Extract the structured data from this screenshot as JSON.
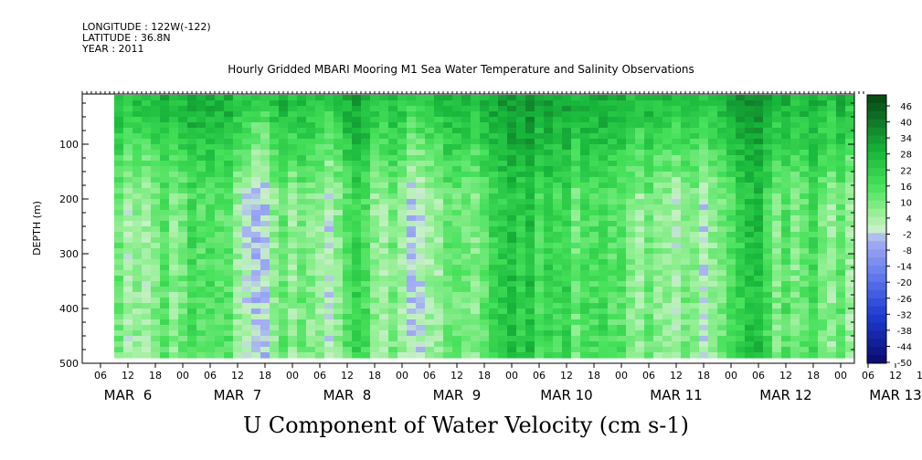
{
  "header": {
    "longitude": "LONGITUDE : 122W(-122)",
    "latitude": "LATITUDE : 36.8N",
    "year": "YEAR : 2011"
  },
  "chart_data": {
    "type": "heatmap",
    "title": "Hourly Gridded MBARI Mooring M1 Sea Water Temperature and Salinity Observations",
    "xlabel": "",
    "ylabel": "DEPTH (m)",
    "variable_label": "U Component of Water Velocity (cm s-1)",
    "x_hour_ticks": [
      "06",
      "12",
      "18",
      "00",
      "06",
      "12",
      "18",
      "00",
      "06",
      "12",
      "18",
      "00",
      "06",
      "12",
      "18",
      "00",
      "06",
      "12",
      "18",
      "00",
      "06",
      "12",
      "18",
      "00",
      "06",
      "12",
      "18",
      "00",
      "06",
      "12",
      "18",
      "00"
    ],
    "x_day_labels": [
      "MAR  6",
      "MAR  7",
      "MAR  8",
      "MAR  9",
      "MAR 10",
      "MAR 11",
      "MAR 12",
      "MAR 13"
    ],
    "y_ticks": [
      100,
      200,
      300,
      400,
      500
    ],
    "ylim": [
      500,
      0
    ],
    "time_range": [
      "2011-03-06 02:00",
      "2011-03-13 05:00"
    ],
    "data_time_range": [
      "2011-03-06 09:00",
      "2011-03-13 03:00"
    ],
    "data_depth_range": [
      10,
      490
    ],
    "colorbar": {
      "labels": [
        "46",
        "40",
        "34",
        "28",
        "22",
        "16",
        "10",
        "4",
        "-2",
        "-8",
        "-14",
        "-20",
        "-26",
        "-32",
        "-38",
        "-44",
        "-50"
      ],
      "range": [
        -50,
        49
      ],
      "step": 3
    },
    "value_range": [
      -30,
      46
    ],
    "pattern": "mostly positive (green, 4 to 40) above 150 m; alternating positive and negative (blue, -2 to -30) vertical bands below 200 m"
  }
}
